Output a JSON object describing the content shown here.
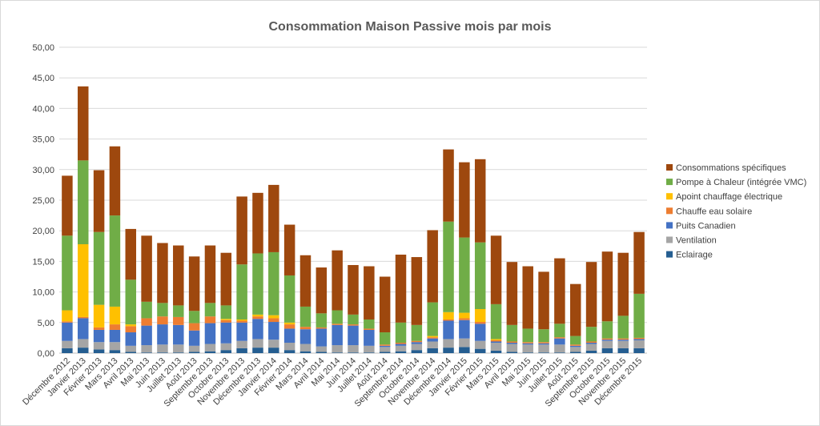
{
  "chart_data": {
    "type": "bar",
    "stacked": true,
    "title": "Consommation Maison Passive mois par mois",
    "xlabel": "",
    "ylabel": "",
    "ylim": [
      0,
      50
    ],
    "y_ticks": [
      "0,00",
      "5,00",
      "10,00",
      "15,00",
      "20,00",
      "25,00",
      "30,00",
      "35,00",
      "40,00",
      "45,00",
      "50,00"
    ],
    "grid": true,
    "legend_position": "right",
    "categories": [
      "Décembre 2012",
      "Janvier 2013",
      "Février 2013",
      "Mars 2013",
      "Avril 2013",
      "Mai 2013",
      "Juin 2013",
      "Juillet 2013",
      "Août 2013",
      "Septembre 2013",
      "Octobre 2013",
      "Novembre 2013",
      "Décembre 2013",
      "Janvier 2014",
      "Février 2014",
      "Mars 2014",
      "Avril 2014",
      "Mai 2014",
      "Juin 2014",
      "Juillet 2014",
      "Août 2014",
      "Septembre 2014",
      "Octobre 2014",
      "Novembre 2014",
      "Décembre 2014",
      "Janvier 2015",
      "Février 2015",
      "Mars 2015",
      "Avril 2015",
      "Mai 2015",
      "Juin 2015",
      "Juillet 2015",
      "Août 2015",
      "Septembre 2015",
      "Octobre 2015",
      "Novembre 2015",
      "Décembre 2015"
    ],
    "series": [
      {
        "name": "Eclairage",
        "color": "#255e91",
        "values": [
          0.8,
          0.9,
          0.6,
          0.5,
          0.2,
          0.1,
          0.1,
          0.1,
          0.2,
          0.3,
          0.5,
          0.8,
          0.9,
          0.9,
          0.5,
          0.3,
          0.2,
          0.1,
          0.1,
          0.1,
          0.2,
          0.3,
          0.5,
          0.8,
          0.9,
          1.0,
          0.7,
          0.4,
          0.2,
          0.1,
          0.1,
          0.1,
          0.2,
          0.4,
          0.8,
          0.8,
          0.8
        ]
      },
      {
        "name": "Ventilation",
        "color": "#a5a5a5",
        "values": [
          1.2,
          1.4,
          1.2,
          1.3,
          1.0,
          1.2,
          1.3,
          1.3,
          1.0,
          1.2,
          1.1,
          1.2,
          1.4,
          1.3,
          1.2,
          1.2,
          0.9,
          1.2,
          1.2,
          1.1,
          0.8,
          0.9,
          1.0,
          1.1,
          1.4,
          1.4,
          1.3,
          1.3,
          1.3,
          1.3,
          1.3,
          1.3,
          0.8,
          1.1,
          1.2,
          1.2,
          1.3
        ]
      },
      {
        "name": "Puits Canadien",
        "color": "#4472c4",
        "values": [
          3.0,
          3.4,
          2.0,
          2.0,
          2.2,
          3.2,
          3.3,
          3.2,
          2.5,
          3.4,
          3.4,
          3.0,
          3.3,
          2.9,
          2.3,
          2.4,
          2.9,
          3.3,
          3.2,
          2.6,
          0.2,
          0.3,
          0.3,
          0.5,
          3.0,
          3.0,
          2.8,
          0.2,
          0.2,
          0.2,
          0.2,
          1.0,
          0.2,
          0.2,
          0.2,
          0.2,
          0.2
        ]
      },
      {
        "name": "Chauffe eau solaire",
        "color": "#ed7d31",
        "values": [
          0.2,
          0.2,
          0.4,
          0.9,
          1.0,
          1.2,
          1.3,
          1.3,
          1.2,
          1.1,
          0.4,
          0.3,
          0.4,
          0.6,
          0.7,
          0.4,
          0.2,
          0.2,
          0.2,
          0.2,
          0.2,
          0.2,
          0.2,
          0.2,
          0.2,
          0.3,
          0.3,
          0.2,
          0.2,
          0.2,
          0.2,
          0.2,
          0.2,
          0.2,
          0.2,
          0.2,
          0.2
        ]
      },
      {
        "name": "Apoint chauffage électrique",
        "color": "#ffc000",
        "values": [
          1.8,
          11.9,
          3.7,
          2.9,
          0.3,
          0.0,
          0.0,
          0.0,
          0.0,
          0.0,
          0.2,
          0.2,
          0.3,
          0.5,
          0.3,
          0.0,
          0.0,
          0.0,
          0.0,
          0.0,
          0.0,
          0.0,
          0.0,
          0.2,
          1.2,
          0.9,
          2.1,
          0.2,
          0.0,
          0.0,
          0.0,
          0.0,
          0.0,
          0.0,
          0.0,
          0.0,
          0.0
        ]
      },
      {
        "name": "Pompe à Chaleur (intégrée VMC)",
        "color": "#70ad47",
        "values": [
          12.2,
          13.7,
          11.9,
          14.9,
          7.3,
          2.7,
          2.2,
          1.9,
          2.0,
          2.2,
          2.2,
          9.0,
          10.0,
          10.3,
          7.7,
          3.3,
          2.3,
          2.2,
          1.6,
          1.5,
          2.0,
          3.3,
          2.6,
          5.5,
          14.8,
          12.3,
          10.9,
          5.7,
          2.7,
          2.2,
          2.1,
          2.2,
          1.4,
          2.4,
          2.8,
          3.7,
          7.2
        ]
      },
      {
        "name": "Consommations spécifiques",
        "color": "#9e480e",
        "values": [
          9.8,
          12.1,
          10.1,
          11.3,
          8.3,
          10.8,
          9.8,
          9.8,
          8.9,
          9.4,
          8.6,
          11.1,
          9.9,
          11.0,
          8.3,
          8.4,
          7.5,
          9.8,
          8.1,
          8.7,
          9.1,
          11.1,
          11.1,
          11.8,
          11.8,
          12.3,
          13.6,
          11.2,
          10.3,
          10.2,
          9.4,
          10.7,
          8.5,
          10.6,
          11.4,
          10.3,
          10.1
        ]
      }
    ]
  }
}
